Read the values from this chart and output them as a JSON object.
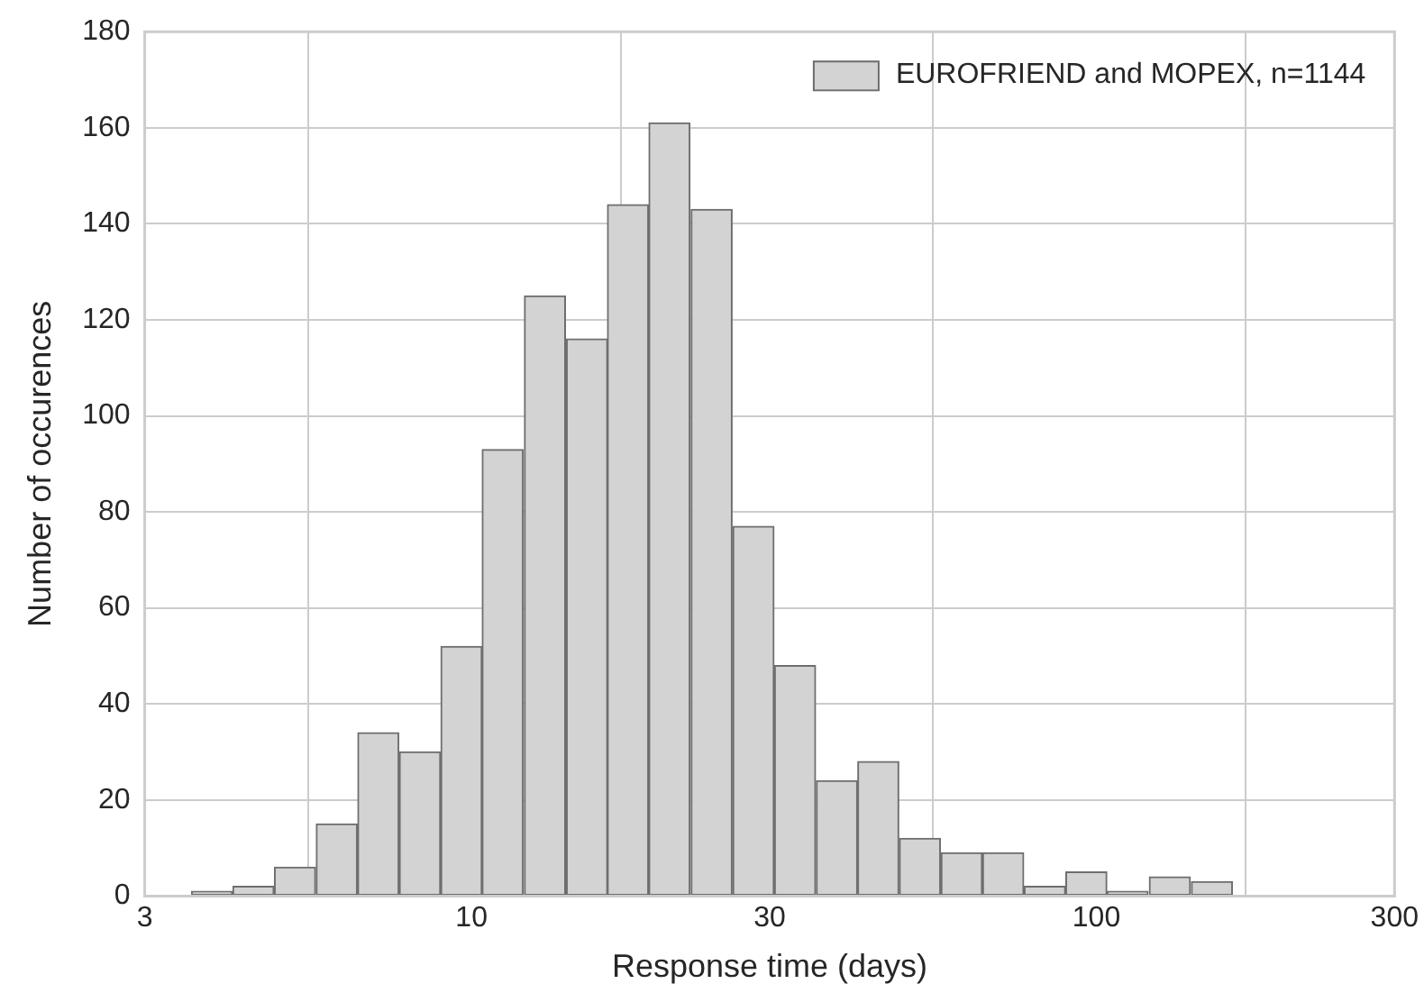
{
  "chart_data": {
    "type": "histogram",
    "xlabel": "Response time (days)",
    "ylabel": "Number of occurences",
    "bins": [
      3.56,
      4.15,
      4.83,
      5.64,
      6.57,
      7.66,
      8.93,
      10.4,
      12.1,
      14.2,
      16.5,
      19.2,
      22.4,
      26.2,
      30.5,
      35.6,
      41.5,
      48.3,
      56.4,
      65.7,
      76.6,
      89.3,
      104,
      121,
      142,
      165
    ],
    "series": [
      {
        "name": "EUROFRIEND and MOPEX, n=1144",
        "color": "#d3d3d3",
        "values": [
          1,
          2,
          6,
          15,
          34,
          30,
          52,
          93,
          125,
          116,
          144,
          161,
          143,
          77,
          48,
          24,
          28,
          12,
          9,
          9,
          2,
          5,
          1,
          4,
          3
        ]
      }
    ],
    "log": "x",
    "xlim": [
      3,
      300
    ],
    "xticks": [
      3,
      10,
      30,
      100,
      300
    ],
    "ylim": [
      0,
      180
    ],
    "yticks": [
      0,
      20,
      40,
      60,
      80,
      100,
      120,
      140,
      160,
      180
    ],
    "grid": true,
    "legend": "top right"
  }
}
